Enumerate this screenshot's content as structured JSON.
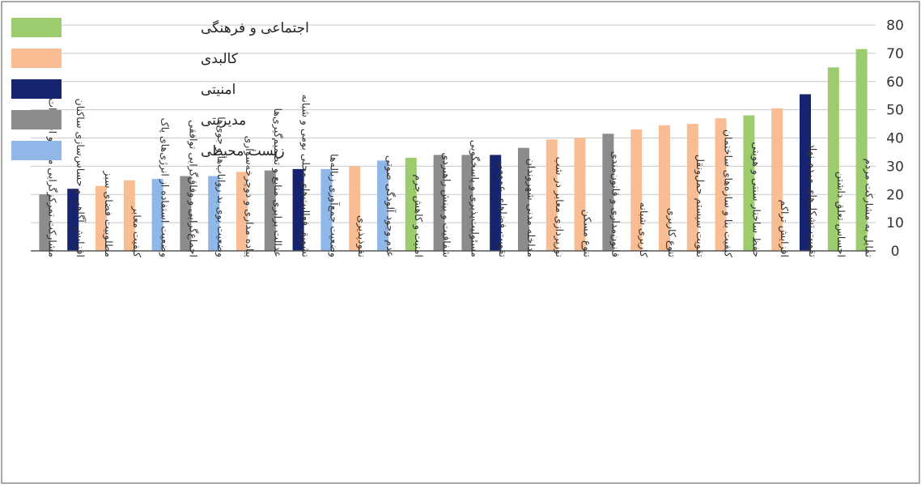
{
  "chart_data": {
    "type": "bar",
    "ylim": [
      0,
      80
    ],
    "y_ticks": [
      0,
      10,
      20,
      30,
      40,
      50,
      60,
      70,
      80
    ],
    "grid": true,
    "legend_position": "top-left",
    "groups": [
      {
        "name": "اجتماعی و فرهنگی",
        "color": "#9dcc6e"
      },
      {
        "name": "کالبدی",
        "color": "#f9bd94"
      },
      {
        "name": "امنیتی",
        "color": "#16236e"
      },
      {
        "name": "مدیریتی",
        "color": "#8c8c8c"
      },
      {
        "name": "زیست محیطی",
        "color": "#8fb7e8"
      }
    ],
    "categories": [
      "مشارکت تمرکزگرایی منابع و اختیارات",
      "افزایش آگاهی و حساس‌سازی ساکنان",
      "مطلوبیت فضای سبز",
      "کیفیت معابر",
      "وضعیت استفاده از انرژی‌های پاک",
      "اجماع‌گرایی و وفاق‌گرایی توافقی",
      "وضعیت بوی بد رواناب‌ها و جوی‌ها",
      "پیاده مداری و دوچرخه‌سواری",
      "عدالت برابری منابع و تصمیم‌گیری‌ها",
      "تشویق فعالیت‌های محلی بومی و شبانه",
      "وضعیت جمع‌آوری زباله‌ها",
      "نفوذپذیری",
      "عدم وجود آلودگی صوتی",
      "امنیت و کاهش جرم",
      "شفافیت و بینش راهبردی",
      "مسئولیت‌پذیری و پاسخگویی",
      "تقویت فضاهای عمومی",
      "مداخله مدنی شهروندان",
      "نورپردازی معابر در شب",
      "تنوع مسکن",
      "قانون‌مداری و قانون‌مندی",
      "کاربری شبانه",
      "تنوع کاربری",
      "تقویت سیستم حمل‌ونقل",
      "کیفیت بنا و سازه‌های ساختمان",
      "حفظ ساختار سنتی و هویتی",
      "افزایش تراکم",
      "تقویت تشکل‌های مردم نهاد",
      "احساس تعلق داشتن",
      "تمایل به مشارکت مردم"
    ],
    "values": [
      20,
      22,
      23,
      25,
      25.5,
      26.5,
      26.5,
      28,
      28.5,
      29,
      29,
      30,
      32,
      33,
      34,
      34,
      34,
      36.5,
      39.5,
      40,
      41.5,
      43,
      44.5,
      45,
      47,
      48,
      50.5,
      55.5,
      65,
      71.5
    ],
    "groups_per_bar": [
      3,
      2,
      1,
      1,
      4,
      3,
      4,
      1,
      3,
      2,
      4,
      1,
      4,
      0,
      3,
      3,
      2,
      3,
      1,
      1,
      3,
      1,
      1,
      1,
      1,
      0,
      1,
      2,
      0,
      0
    ]
  }
}
